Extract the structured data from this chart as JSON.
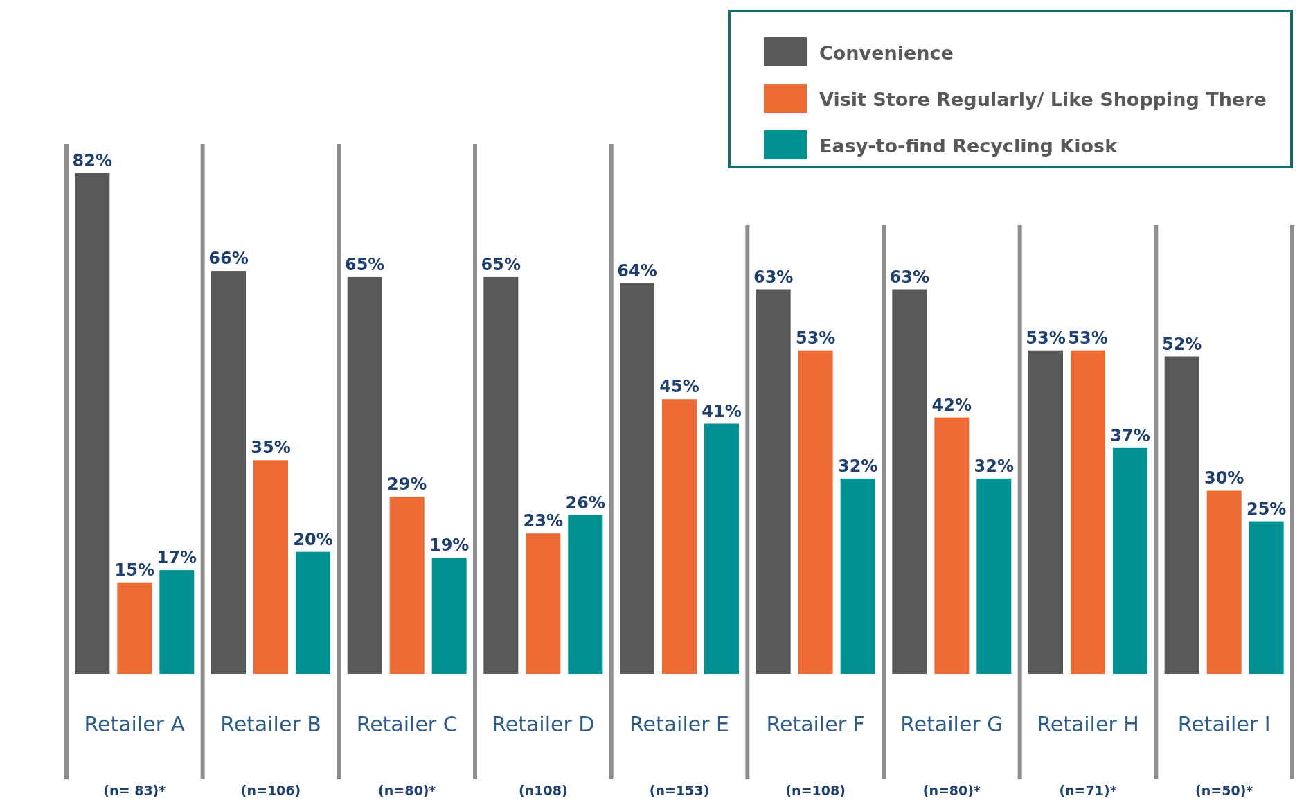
{
  "chart_data": {
    "type": "bar",
    "categories": [
      "Retailer A",
      "Retailer B",
      "Retailer C",
      "Retailer D",
      "Retailer E",
      "Retailer F",
      "Retailer G",
      "Retailer H",
      "Retailer I"
    ],
    "series": [
      {
        "name": "Convenience",
        "color": "#58595b",
        "values": [
          82,
          66,
          65,
          65,
          64,
          63,
          63,
          53,
          52
        ],
        "value_labels": [
          "82%",
          "66%",
          "65%",
          "65%",
          "64%",
          "63%",
          "63%",
          "53%",
          "52%"
        ]
      },
      {
        "name": "Visit Store Regularly/ Like Shopping There",
        "color": "#ed6a35",
        "values": [
          15,
          35,
          29,
          23,
          45,
          53,
          42,
          53,
          30
        ],
        "value_labels": [
          "15%",
          "35%",
          "29%",
          "23%",
          "45%",
          "53%",
          "42%",
          "53%",
          "30%"
        ]
      },
      {
        "name": "Easy-to-find Recycling Kiosk",
        "color": "#009193",
        "values": [
          17,
          20,
          19,
          26,
          41,
          32,
          32,
          37,
          25
        ],
        "value_labels": [
          "17%",
          "20%",
          "19%",
          "26%",
          "41%",
          "32%",
          "32%",
          "37%",
          "25%"
        ]
      }
    ],
    "legend": "top right",
    "grid": false,
    "annotations": [
      "(n= 83)*",
      "(n=106)",
      "(n=80)*",
      "(n108)",
      "(n=153)",
      "(n=108)",
      "(n=80)*",
      "(n=71)*",
      "(n=50)*"
    ]
  }
}
